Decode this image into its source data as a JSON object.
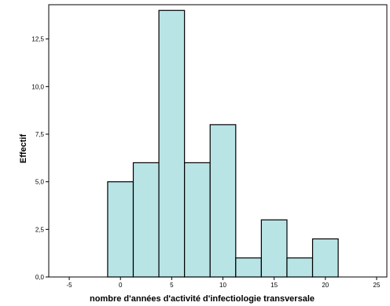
{
  "chart_data": {
    "type": "bar",
    "subtype": "histogram",
    "title": "",
    "xlabel": "nombre d'années d'activité d'infectiologie transversale",
    "ylabel": "Effectif",
    "xlim": [
      -7,
      26
    ],
    "ylim": [
      0,
      14.3
    ],
    "x_ticks": [
      -5,
      0,
      5,
      10,
      15,
      20,
      25
    ],
    "x_tick_labels": [
      "-5",
      "0",
      "5",
      "10",
      "15",
      "20",
      "25"
    ],
    "y_ticks": [
      0,
      2.5,
      5,
      7.5,
      10,
      12.5
    ],
    "y_tick_labels": [
      "0,0",
      "2,5",
      "5,0",
      "7,5",
      "10,0",
      "12,5"
    ],
    "bin_width": 2.5,
    "bins": [
      {
        "x_start": -1.25,
        "x_end": 1.25,
        "count": 5
      },
      {
        "x_start": 1.25,
        "x_end": 3.75,
        "count": 6
      },
      {
        "x_start": 3.75,
        "x_end": 6.25,
        "count": 14
      },
      {
        "x_start": 6.25,
        "x_end": 8.75,
        "count": 6
      },
      {
        "x_start": 8.75,
        "x_end": 11.25,
        "count": 8
      },
      {
        "x_start": 11.25,
        "x_end": 13.75,
        "count": 1
      },
      {
        "x_start": 13.75,
        "x_end": 16.25,
        "count": 3
      },
      {
        "x_start": 16.25,
        "x_end": 18.75,
        "count": 1
      },
      {
        "x_start": 18.75,
        "x_end": 21.25,
        "count": 2
      }
    ],
    "grid": false,
    "legend": "none",
    "bar_color": "#b8e4e6",
    "bar_edge_color": "#000000"
  }
}
